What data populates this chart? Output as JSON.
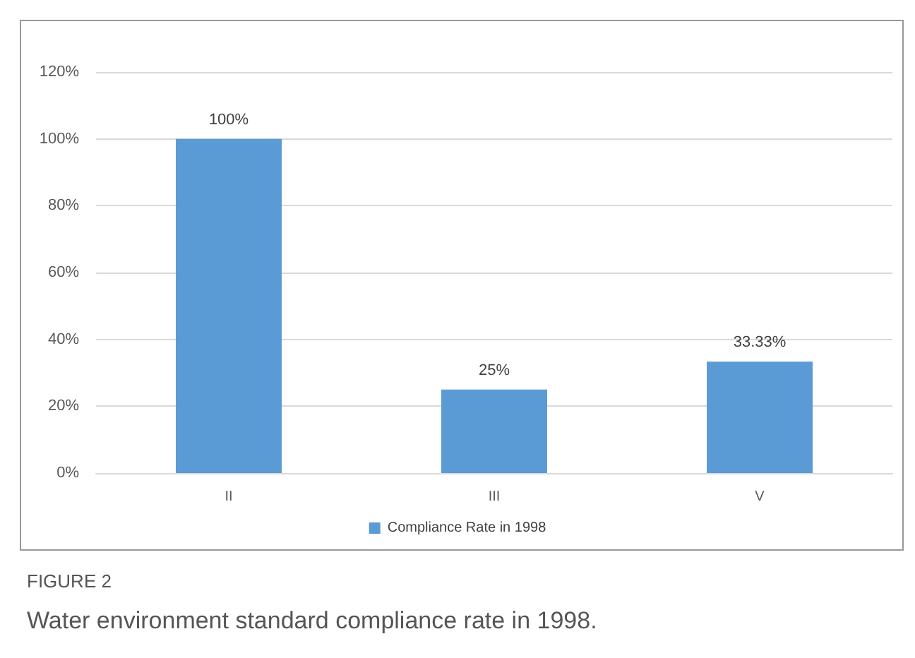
{
  "chart_data": {
    "type": "bar",
    "categories": [
      "II",
      "III",
      "V"
    ],
    "series": [
      {
        "name": "Compliance Rate in 1998",
        "color": "#5b9bd5",
        "values": [
          100,
          25,
          33.33
        ],
        "value_labels": [
          "100%",
          "25%",
          "33.33%"
        ]
      }
    ],
    "ylim": [
      0,
      120
    ],
    "yticks": [
      {
        "value": 0,
        "label": "0%"
      },
      {
        "value": 20,
        "label": "20%"
      },
      {
        "value": 40,
        "label": "40%"
      },
      {
        "value": 60,
        "label": "60%"
      },
      {
        "value": 80,
        "label": "80%"
      },
      {
        "value": 100,
        "label": "100%"
      },
      {
        "value": 120,
        "label": "120%"
      }
    ],
    "grid": "y",
    "legend": "bottom",
    "annotations": [
      "FIGURE 2",
      "Water environment standard compliance rate in 1998."
    ]
  }
}
